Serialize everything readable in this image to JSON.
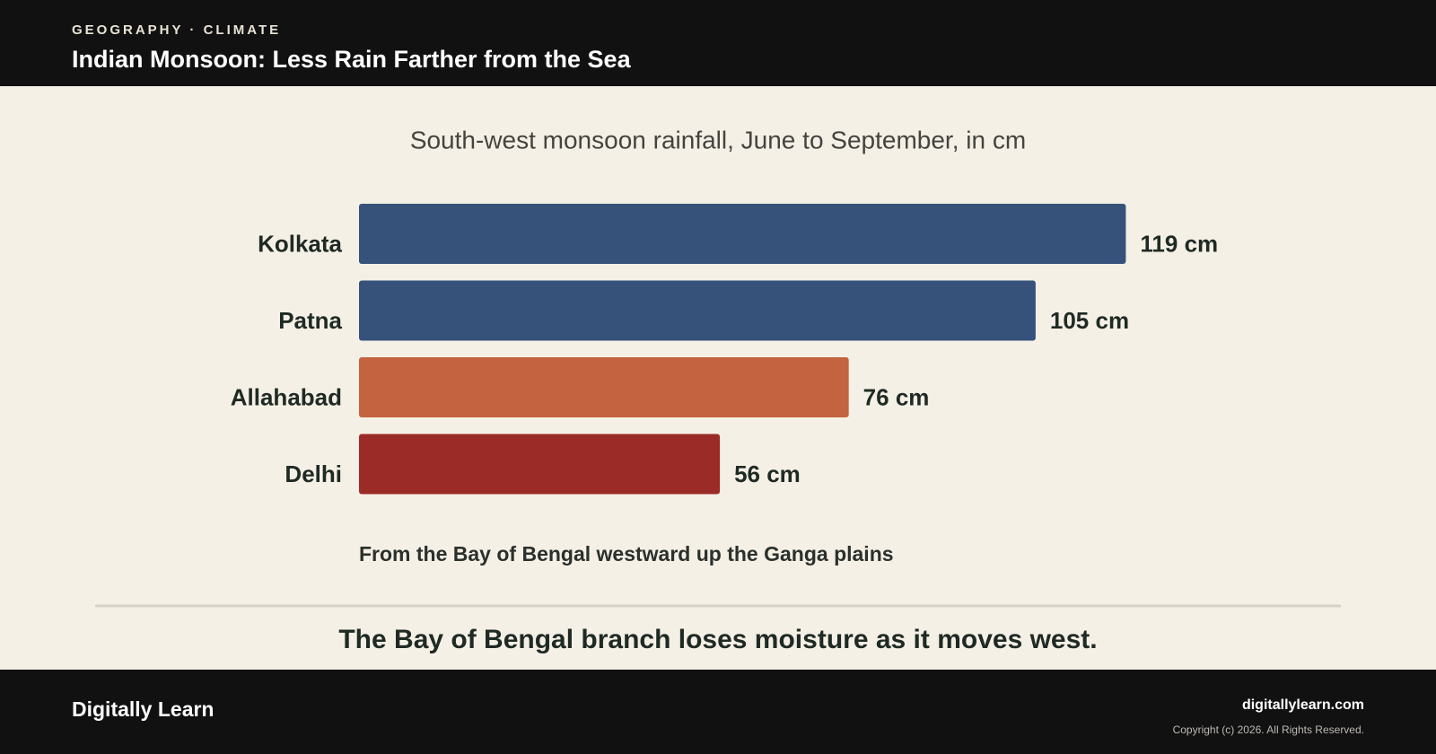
{
  "header": {
    "eyebrow": "GEOGRAPHY · CLIMATE",
    "title": "Indian Monsoon: Less Rain Farther from the Sea"
  },
  "chart_data": {
    "type": "bar",
    "orientation": "horizontal",
    "subtitle": "South-west monsoon rainfall, June to September, in cm",
    "categories": [
      "Kolkata",
      "Patna",
      "Allahabad",
      "Delhi"
    ],
    "values": [
      119,
      105,
      76,
      56
    ],
    "value_labels": [
      "119 cm",
      "105 cm",
      "76 cm",
      "56 cm"
    ],
    "colors": [
      "#36527a",
      "#36527a",
      "#c4633f",
      "#9b2b26"
    ],
    "annotation": "From the Bay of Bengal westward up the Ganga plains"
  },
  "takeaway": "The Bay of Bengal branch loses moisture as it moves west.",
  "footer": {
    "brand": "Digitally Learn",
    "site": "digitallylearn.com",
    "copyright": "Copyright (c) 2026. All Rights Reserved."
  }
}
